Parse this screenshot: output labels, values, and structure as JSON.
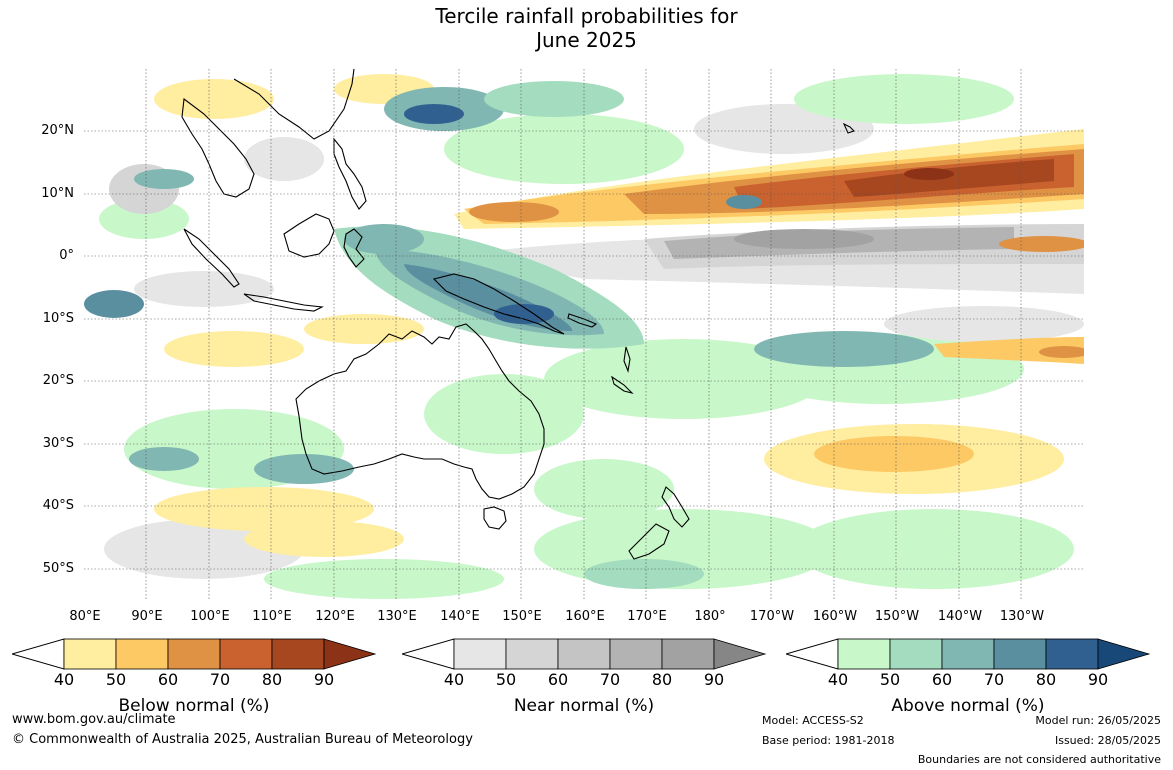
{
  "title_line1": "Tercile rainfall probabilities for",
  "title_line2": "June 2025",
  "lat_labels": [
    "20°N",
    "10°N",
    "0°",
    "10°S",
    "20°S",
    "30°S",
    "40°S",
    "50°S"
  ],
  "lon_labels": [
    "80°E",
    "90°E",
    "100°E",
    "110°E",
    "120°E",
    "130°E",
    "140°E",
    "150°E",
    "160°E",
    "170°E",
    "180°",
    "170°W",
    "160°W",
    "150°W",
    "140°W",
    "130°W"
  ],
  "colorbars": [
    {
      "title": "Below normal (%)",
      "ticks": [
        "40",
        "50",
        "60",
        "70",
        "80",
        "90"
      ],
      "colors": [
        "#ffeda0",
        "#fdc964",
        "#df9244",
        "#c9622f",
        "#a7471f",
        "#8c3217"
      ]
    },
    {
      "title": "Near normal (%)",
      "ticks": [
        "40",
        "50",
        "60",
        "70",
        "80",
        "90"
      ],
      "colors": [
        "#e6e6e6",
        "#d5d5d5",
        "#c4c4c4",
        "#b3b3b3",
        "#a2a2a2",
        "#868686"
      ]
    },
    {
      "title": "Above normal (%)",
      "ticks": [
        "40",
        "50",
        "60",
        "70",
        "80",
        "90"
      ],
      "colors": [
        "#c8f7c9",
        "#a3dcbe",
        "#80b7b2",
        "#5a8fa0",
        "#306090",
        "#184878"
      ]
    }
  ],
  "footer": {
    "website": "www.bom.gov.au/climate",
    "copyright": "© Commonwealth of Australia 2025, Australian Bureau of Meteorology",
    "model": "Model: ACCESS-S2",
    "base_period": "Base period: 1981-2018",
    "model_run": "Model run: 26/05/2025",
    "issued": "Issued: 28/05/2025",
    "boundaries": "Boundaries are not considered authoritative"
  }
}
